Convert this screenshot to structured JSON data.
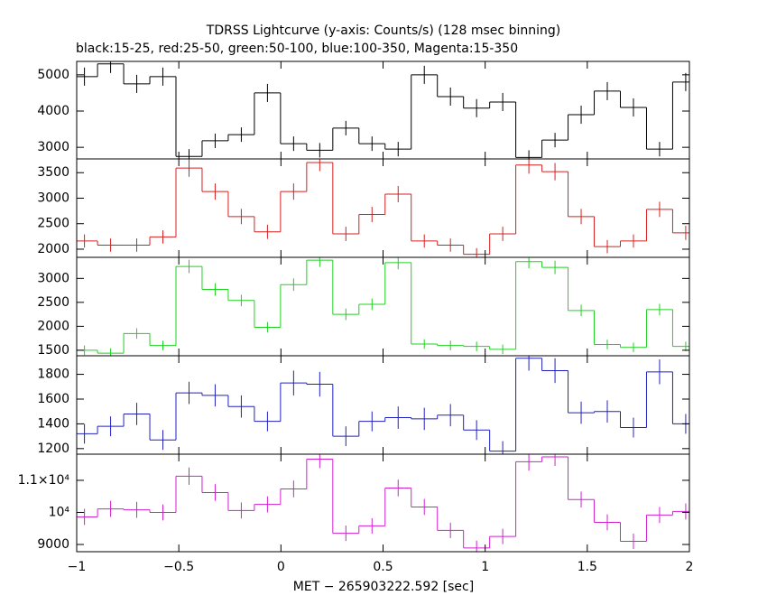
{
  "chart_data": [
    {
      "type": "step",
      "title": "TDRSS Lightcurve (y-axis: Counts/s) (128 msec binning)",
      "subtitle": "black:15-25, red:25-50, green:50-100, blue:100-350, Magenta:15-350",
      "color": "#000000",
      "bin_width": 0.128,
      "xlim": [
        -1,
        2
      ],
      "ylim": [
        2680,
        5370
      ],
      "yticks": [
        3000,
        4000,
        5000
      ],
      "x": [
        -0.962,
        -0.834,
        -0.706,
        -0.578,
        -0.45,
        -0.322,
        -0.194,
        -0.066,
        0.062,
        0.19,
        0.318,
        0.446,
        0.574,
        0.702,
        0.83,
        0.958,
        1.086,
        1.214,
        1.342,
        1.47,
        1.598,
        1.726,
        1.854,
        1.982
      ],
      "values": [
        4950,
        5300,
        4750,
        4950,
        2750,
        3180,
        3350,
        4500,
        3100,
        2920,
        3530,
        3100,
        2950,
        5000,
        4400,
        4080,
        4250,
        2720,
        3200,
        3900,
        4550,
        4100,
        2950,
        4800
      ],
      "errors": [
        250,
        250,
        250,
        250,
        200,
        200,
        200,
        250,
        200,
        200,
        200,
        200,
        200,
        250,
        250,
        250,
        250,
        200,
        200,
        250,
        250,
        250,
        200,
        250
      ]
    },
    {
      "type": "step",
      "color": "#d42020",
      "bin_width": 0.128,
      "xlim": [
        -1,
        2
      ],
      "ylim": [
        1840,
        3770
      ],
      "yticks": [
        2000,
        2500,
        3000,
        3500
      ],
      "x": [
        -0.962,
        -0.834,
        -0.706,
        -0.578,
        -0.45,
        -0.322,
        -0.194,
        -0.066,
        0.062,
        0.19,
        0.318,
        0.446,
        0.574,
        0.702,
        0.83,
        0.958,
        1.086,
        1.214,
        1.342,
        1.47,
        1.598,
        1.726,
        1.854,
        1.982
      ],
      "values": [
        2160,
        2080,
        2080,
        2240,
        3590,
        3130,
        2640,
        2340,
        3130,
        3700,
        2300,
        2680,
        3080,
        2160,
        2080,
        1900,
        2300,
        3650,
        3520,
        2640,
        2050,
        2160,
        2780,
        2320
      ],
      "errors": [
        130,
        130,
        130,
        130,
        170,
        160,
        150,
        140,
        160,
        170,
        140,
        150,
        160,
        130,
        130,
        120,
        140,
        170,
        170,
        150,
        130,
        130,
        150,
        140
      ]
    },
    {
      "type": "step",
      "color": "#20d020",
      "bin_width": 0.128,
      "xlim": [
        -1,
        2
      ],
      "ylim": [
        1385,
        3440
      ],
      "yticks": [
        1500,
        2000,
        2500,
        3000
      ],
      "x": [
        -0.962,
        -0.834,
        -0.706,
        -0.578,
        -0.45,
        -0.322,
        -0.194,
        -0.066,
        0.062,
        0.19,
        0.318,
        0.446,
        0.574,
        0.702,
        0.83,
        0.958,
        1.086,
        1.214,
        1.342,
        1.47,
        1.598,
        1.726,
        1.854,
        1.982
      ],
      "values": [
        1500,
        1440,
        1850,
        1600,
        3250,
        2770,
        2540,
        1980,
        2870,
        3380,
        2250,
        2460,
        3330,
        1630,
        1600,
        1580,
        1520,
        3350,
        3230,
        2330,
        1620,
        1560,
        2350,
        1580
      ],
      "errors": [
        100,
        100,
        110,
        100,
        140,
        130,
        120,
        110,
        130,
        140,
        120,
        120,
        140,
        100,
        100,
        100,
        100,
        140,
        140,
        120,
        100,
        100,
        120,
        100
      ]
    },
    {
      "type": "step",
      "color": "#2020c0",
      "bin_width": 0.128,
      "xlim": [
        -1,
        2
      ],
      "ylim": [
        1155,
        1950
      ],
      "yticks": [
        1200,
        1400,
        1600,
        1800
      ],
      "x": [
        -0.962,
        -0.834,
        -0.706,
        -0.578,
        -0.45,
        -0.322,
        -0.194,
        -0.066,
        0.062,
        0.19,
        0.318,
        0.446,
        0.574,
        0.702,
        0.83,
        0.958,
        1.086,
        1.214,
        1.342,
        1.47,
        1.598,
        1.726,
        1.854,
        1.982
      ],
      "values": [
        1320,
        1380,
        1480,
        1270,
        1650,
        1630,
        1540,
        1420,
        1730,
        1720,
        1300,
        1420,
        1450,
        1440,
        1470,
        1350,
        1180,
        1930,
        1830,
        1490,
        1500,
        1370,
        1820,
        1400
      ],
      "errors": [
        80,
        80,
        90,
        80,
        90,
        90,
        90,
        80,
        100,
        100,
        80,
        80,
        90,
        90,
        90,
        80,
        80,
        100,
        100,
        90,
        90,
        80,
        100,
        80
      ]
    },
    {
      "type": "step",
      "color": "#d020d0",
      "bin_width": 0.128,
      "xlim": [
        -1,
        2
      ],
      "ylim": [
        8775,
        11815
      ],
      "yticks": [
        {
          "value": 9000,
          "label": "9000"
        },
        {
          "value": 10000,
          "label": "10⁴"
        },
        {
          "value": 11000,
          "label": "1.1×10⁴"
        }
      ],
      "x": [
        -0.962,
        -0.834,
        -0.706,
        -0.578,
        -0.45,
        -0.322,
        -0.194,
        -0.066,
        0.062,
        0.19,
        0.318,
        0.446,
        0.574,
        0.702,
        0.83,
        0.958,
        1.086,
        1.214,
        1.342,
        1.47,
        1.598,
        1.726,
        1.854,
        1.982
      ],
      "values": [
        9860,
        10110,
        10080,
        10000,
        11130,
        10620,
        10060,
        10250,
        10730,
        11660,
        9350,
        9580,
        10760,
        10170,
        9440,
        8890,
        9250,
        11580,
        11730,
        10400,
        9690,
        9100,
        9920,
        10030
      ],
      "errors": [
        250,
        250,
        250,
        250,
        270,
        260,
        250,
        250,
        260,
        280,
        240,
        240,
        260,
        250,
        240,
        230,
        240,
        280,
        280,
        250,
        250,
        240,
        250,
        250
      ],
      "xlabel": "MET − 265903222.592 [sec]",
      "xticks": [
        {
          "value": -1,
          "label": "−1"
        },
        {
          "value": -0.5,
          "label": "−0.5"
        },
        0,
        0.5,
        1,
        1.5,
        2
      ]
    }
  ]
}
